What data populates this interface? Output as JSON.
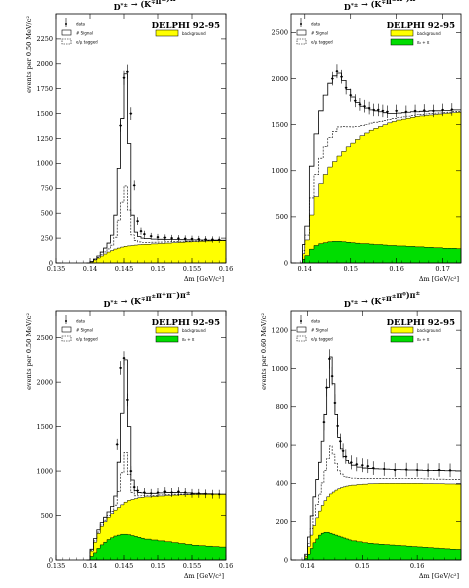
{
  "common": {
    "experiment_label": "DELPHI 92-95",
    "x_axis_label": "Δm [GeV/c²]",
    "y_axis_label": "events per 0.50 MeV/c²",
    "y_axis_label_d": "events per 0.60 MeV/c²",
    "legend": {
      "data": "data",
      "signal": "# Signal",
      "tagged": "e/μ tagged",
      "background": "background",
      "other": "π₀ + π",
      "signal_color": "#ffffff",
      "background_color": "#ffff00",
      "other_color": "#00dd00"
    },
    "colors": {
      "background_fill": "#ffff00",
      "green_fill": "#00dd00",
      "line": "#000000"
    }
  },
  "chart_data": [
    {
      "type": "area",
      "panel": "top-left",
      "title": "D*± → (K∓π±)π±",
      "title_main": "D",
      "title_sup": "*±",
      "title_rest": " → (K",
      "title_sup2": "∓",
      "title_mid": "π",
      "title_sup3": "±",
      "title_end": ")π",
      "title_sup4": "±",
      "xlabel": "Δm [GeV/c²]",
      "ylabel": "events per 0.50 MeV/c²",
      "xlim": [
        0.135,
        0.16
      ],
      "ylim": [
        0,
        2500
      ],
      "xticks": [
        "0.135",
        "0.14",
        "0.145",
        "0.15",
        "0.155",
        "0.16"
      ],
      "yticks": [
        "0",
        "250",
        "500",
        "750",
        "1000",
        "1250",
        "1500",
        "1750",
        "2000",
        "2250"
      ],
      "x": [
        0.1395,
        0.14,
        0.1405,
        0.141,
        0.1415,
        0.142,
        0.1425,
        0.143,
        0.1435,
        0.144,
        0.1445,
        0.145,
        0.1455,
        0.146,
        0.1465,
        0.147,
        0.1475,
        0.148,
        0.149,
        0.15,
        0.151,
        0.152,
        0.153,
        0.154,
        0.155,
        0.156,
        0.157,
        0.158,
        0.159,
        0.16
      ],
      "total": [
        0,
        15,
        40,
        70,
        110,
        150,
        200,
        280,
        480,
        950,
        1450,
        1900,
        1200,
        480,
        310,
        265,
        250,
        245,
        240,
        238,
        236,
        235,
        234,
        233,
        232,
        231,
        230,
        229,
        228,
        228
      ],
      "background": [
        0,
        10,
        30,
        50,
        70,
        90,
        110,
        125,
        140,
        150,
        160,
        168,
        172,
        176,
        180,
        183,
        186,
        188,
        192,
        196,
        200,
        204,
        208,
        212,
        215,
        218,
        221,
        224,
        226,
        228
      ],
      "green": [],
      "data_points": [
        [
          0.1455,
          1920
        ],
        [
          0.145,
          1860
        ],
        [
          0.146,
          1500
        ],
        [
          0.1445,
          1380
        ],
        [
          0.1465,
          780
        ],
        [
          0.147,
          420
        ],
        [
          0.1475,
          320
        ],
        [
          0.148,
          290
        ],
        [
          0.149,
          270
        ],
        [
          0.15,
          260
        ],
        [
          0.151,
          255
        ],
        [
          0.152,
          250
        ],
        [
          0.153,
          248
        ],
        [
          0.154,
          245
        ],
        [
          0.155,
          243
        ],
        [
          0.156,
          240
        ],
        [
          0.157,
          238
        ],
        [
          0.158,
          236
        ],
        [
          0.159,
          234
        ]
      ],
      "legend_right": [
        "background"
      ]
    },
    {
      "type": "area",
      "panel": "top-right",
      "title_main": "D",
      "title_sup": "*±",
      "title_rest": " → (K",
      "title_sup2": "∓",
      "title_mid": "π",
      "title_sup3": "±",
      "title_end": "π⁰)π",
      "title_sup4": "±",
      "xlabel": "Δm [GeV/c²]",
      "ylabel": "",
      "xlim": [
        0.137,
        0.174
      ],
      "ylim": [
        0,
        2700
      ],
      "xticks": [
        "0.14",
        "0.15",
        "0.16",
        "0.17"
      ],
      "xtick_vals": [
        0.14,
        0.15,
        0.16,
        0.17
      ],
      "yticks": [
        "0",
        "500",
        "1000",
        "1500",
        "2000",
        "2500"
      ],
      "x": [
        0.139,
        0.1395,
        0.14,
        0.141,
        0.142,
        0.143,
        0.144,
        0.145,
        0.146,
        0.147,
        0.148,
        0.149,
        0.15,
        0.151,
        0.152,
        0.153,
        0.154,
        0.155,
        0.156,
        0.157,
        0.158,
        0.159,
        0.16,
        0.161,
        0.162,
        0.163,
        0.164,
        0.165,
        0.166,
        0.167,
        0.168,
        0.169,
        0.17,
        0.171,
        0.172,
        0.173,
        0.174
      ],
      "total": [
        0,
        200,
        400,
        1050,
        1400,
        1650,
        1820,
        1950,
        2030,
        2060,
        1980,
        1880,
        1800,
        1740,
        1700,
        1680,
        1660,
        1650,
        1640,
        1630,
        1620,
        1620,
        1625,
        1630,
        1635,
        1640,
        1640,
        1645,
        1645,
        1650,
        1650,
        1650,
        1655,
        1655,
        1660,
        1660,
        1660
      ],
      "background": [
        0,
        100,
        250,
        520,
        720,
        860,
        960,
        1040,
        1100,
        1160,
        1210,
        1260,
        1300,
        1340,
        1380,
        1410,
        1440,
        1460,
        1480,
        1500,
        1520,
        1535,
        1550,
        1560,
        1570,
        1580,
        1590,
        1595,
        1600,
        1605,
        1610,
        1615,
        1620,
        1625,
        1630,
        1635,
        1640
      ],
      "green": [
        0,
        40,
        80,
        150,
        190,
        210,
        220,
        230,
        235,
        235,
        230,
        225,
        220,
        215,
        210,
        210,
        205,
        200,
        200,
        195,
        190,
        190,
        185,
        185,
        180,
        180,
        175,
        175,
        170,
        170,
        165,
        165,
        160,
        160,
        160,
        155,
        155
      ],
      "data_points": [
        [
          0.147,
          2080
        ],
        [
          0.148,
          2020
        ],
        [
          0.146,
          2000
        ],
        [
          0.149,
          1900
        ],
        [
          0.15,
          1820
        ],
        [
          0.151,
          1760
        ],
        [
          0.152,
          1720
        ],
        [
          0.153,
          1700
        ],
        [
          0.154,
          1680
        ],
        [
          0.155,
          1660
        ],
        [
          0.156,
          1660
        ],
        [
          0.157,
          1650
        ],
        [
          0.158,
          1640
        ],
        [
          0.16,
          1650
        ],
        [
          0.162,
          1640
        ],
        [
          0.164,
          1650
        ],
        [
          0.166,
          1655
        ],
        [
          0.168,
          1650
        ],
        [
          0.17,
          1660
        ],
        [
          0.172,
          1665
        ]
      ],
      "legend_right": [
        "background",
        "π₀ + π"
      ]
    },
    {
      "type": "area",
      "panel": "bottom-left",
      "title_main": "D",
      "title_sup": "*±",
      "title_rest": " → (K",
      "title_sup2": "∓",
      "title_mid": "π",
      "title_sup3": "±",
      "title_end": "π⁺π⁻)π",
      "title_sup4": "±",
      "xlabel": "Δm [GeV/c²]",
      "ylabel": "events per 0.50 MeV/c²",
      "xlim": [
        0.135,
        0.16
      ],
      "ylim": [
        0,
        2800
      ],
      "xticks": [
        "0.135",
        "0.14",
        "0.145",
        "0.15",
        "0.155",
        "0.16"
      ],
      "yticks": [
        "0",
        "500",
        "1000",
        "1500",
        "2000",
        "2500"
      ],
      "x": [
        0.1395,
        0.14,
        0.1405,
        0.141,
        0.1415,
        0.142,
        0.1425,
        0.143,
        0.1435,
        0.144,
        0.1445,
        0.145,
        0.1455,
        0.146,
        0.1465,
        0.147,
        0.1475,
        0.148,
        0.149,
        0.15,
        0.151,
        0.152,
        0.153,
        0.154,
        0.155,
        0.156,
        0.157,
        0.158,
        0.159,
        0.16
      ],
      "total": [
        0,
        120,
        240,
        340,
        420,
        480,
        540,
        600,
        720,
        1100,
        1650,
        2250,
        1500,
        900,
        780,
        760,
        755,
        750,
        750,
        755,
        760,
        760,
        758,
        755,
        750,
        748,
        745,
        742,
        740,
        740
      ],
      "background": [
        0,
        100,
        200,
        300,
        380,
        430,
        480,
        520,
        560,
        590,
        620,
        650,
        670,
        680,
        690,
        700,
        705,
        710,
        715,
        720,
        725,
        730,
        733,
        735,
        737,
        738,
        739,
        740,
        740,
        740
      ],
      "green": [
        0,
        40,
        80,
        130,
        170,
        200,
        230,
        250,
        270,
        280,
        290,
        290,
        285,
        275,
        265,
        255,
        245,
        235,
        225,
        215,
        205,
        195,
        185,
        175,
        165,
        160,
        155,
        150,
        145,
        140
      ],
      "data_points": [
        [
          0.145,
          2270
        ],
        [
          0.1445,
          2160
        ],
        [
          0.1455,
          1800
        ],
        [
          0.144,
          1300
        ],
        [
          0.146,
          1000
        ],
        [
          0.1465,
          820
        ],
        [
          0.147,
          780
        ],
        [
          0.148,
          760
        ],
        [
          0.149,
          750
        ],
        [
          0.15,
          760
        ],
        [
          0.151,
          770
        ],
        [
          0.152,
          760
        ],
        [
          0.153,
          770
        ],
        [
          0.154,
          760
        ],
        [
          0.155,
          750
        ],
        [
          0.156,
          750
        ],
        [
          0.157,
          745
        ],
        [
          0.158,
          740
        ],
        [
          0.159,
          740
        ]
      ],
      "legend_right": [
        "background",
        "π₀ + π"
      ]
    },
    {
      "type": "area",
      "panel": "bottom-right",
      "title_main": "D",
      "title_sup": "*±",
      "title_rest": " → (K",
      "title_sup2": "∓",
      "title_mid": "π",
      "title_sup3": "±",
      "title_end": "π⁰)π",
      "title_sup4": "±",
      "xlabel": "Δm [GeV/c²]",
      "ylabel": "events per 0.60 MeV/c²",
      "xlim": [
        0.137,
        0.168
      ],
      "ylim": [
        0,
        1300
      ],
      "xticks": [
        "0.14",
        "0.15",
        "0.16"
      ],
      "xtick_vals": [
        0.14,
        0.15,
        0.16
      ],
      "yticks": [
        "0",
        "200",
        "400",
        "600",
        "800",
        "1000",
        "1200"
      ],
      "x": [
        0.139,
        0.1395,
        0.14,
        0.1405,
        0.141,
        0.1415,
        0.142,
        0.1425,
        0.143,
        0.1435,
        0.144,
        0.1445,
        0.145,
        0.1455,
        0.146,
        0.1465,
        0.147,
        0.1475,
        0.148,
        0.149,
        0.15,
        0.151,
        0.152,
        0.153,
        0.154,
        0.155,
        0.156,
        0.157,
        0.158,
        0.159,
        0.16,
        0.161,
        0.162,
        0.163,
        0.164,
        0.165,
        0.166,
        0.167,
        0.168
      ],
      "total": [
        0,
        30,
        120,
        230,
        330,
        420,
        510,
        620,
        760,
        900,
        1060,
        920,
        760,
        640,
        580,
        540,
        520,
        505,
        495,
        485,
        480,
        478,
        476,
        475,
        474,
        473,
        472,
        471,
        470,
        470,
        469,
        468,
        468,
        467,
        467,
        466,
        466,
        465,
        465
      ],
      "background": [
        0,
        20,
        70,
        130,
        180,
        220,
        255,
        285,
        310,
        330,
        345,
        355,
        365,
        372,
        378,
        382,
        386,
        389,
        391,
        394,
        396,
        398,
        399,
        400,
        400,
        400,
        400,
        400,
        400,
        400,
        400,
        399,
        399,
        398,
        398,
        397,
        397,
        396,
        396
      ],
      "green": [
        0,
        10,
        30,
        60,
        90,
        110,
        130,
        140,
        145,
        145,
        140,
        135,
        130,
        125,
        120,
        115,
        110,
        105,
        100,
        95,
        90,
        87,
        84,
        82,
        80,
        78,
        76,
        74,
        72,
        70,
        68,
        66,
        64,
        62,
        60,
        58,
        56,
        55,
        54
      ],
      "data_points": [
        [
          0.144,
          1050
        ],
        [
          0.1445,
          960
        ],
        [
          0.1435,
          900
        ],
        [
          0.145,
          820
        ],
        [
          0.1455,
          700
        ],
        [
          0.143,
          720
        ],
        [
          0.146,
          620
        ],
        [
          0.1465,
          570
        ],
        [
          0.147,
          540
        ],
        [
          0.148,
          510
        ],
        [
          0.149,
          500
        ],
        [
          0.15,
          495
        ],
        [
          0.151,
          490
        ],
        [
          0.152,
          480
        ],
        [
          0.154,
          475
        ],
        [
          0.156,
          470
        ],
        [
          0.158,
          472
        ],
        [
          0.16,
          470
        ],
        [
          0.162,
          468
        ],
        [
          0.164,
          470
        ],
        [
          0.166,
          468
        ]
      ],
      "legend_right": [
        "background",
        "π₀ + π"
      ]
    }
  ]
}
